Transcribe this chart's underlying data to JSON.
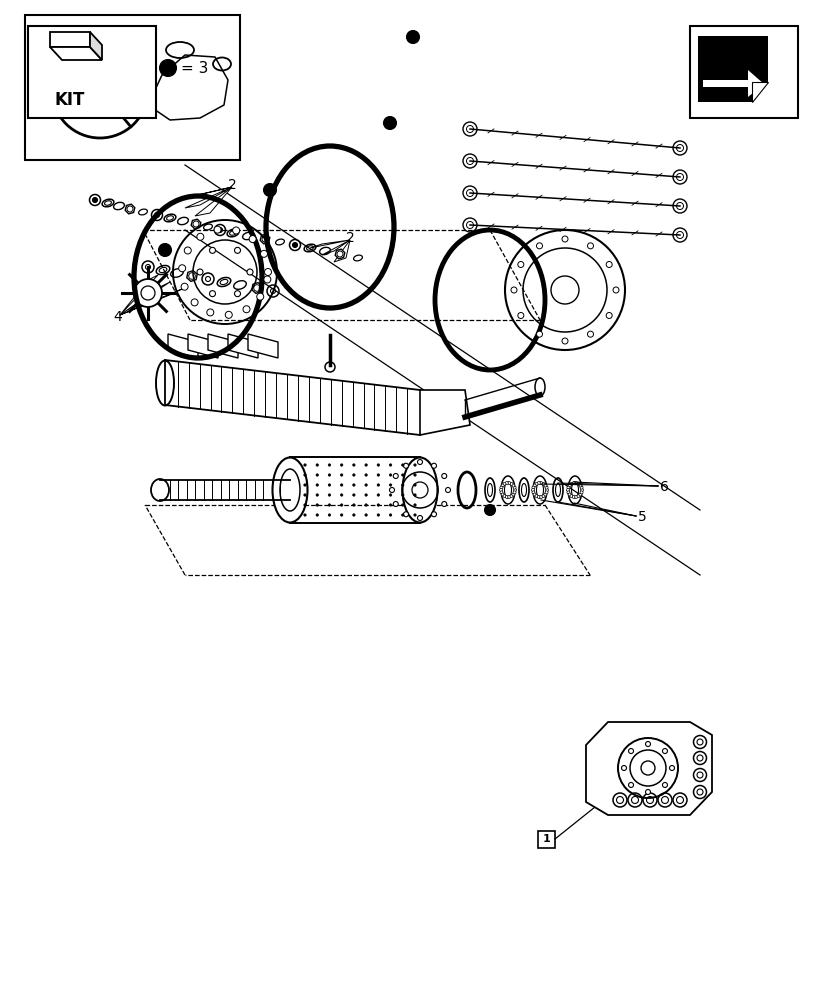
{
  "bg_color": "#ffffff",
  "line_color": "#000000",
  "kit_label": "KIT",
  "bullet_label": "= 3",
  "label_1": "1",
  "label_2": "2",
  "label_4": "4",
  "label_5": "5",
  "label_6": "6"
}
